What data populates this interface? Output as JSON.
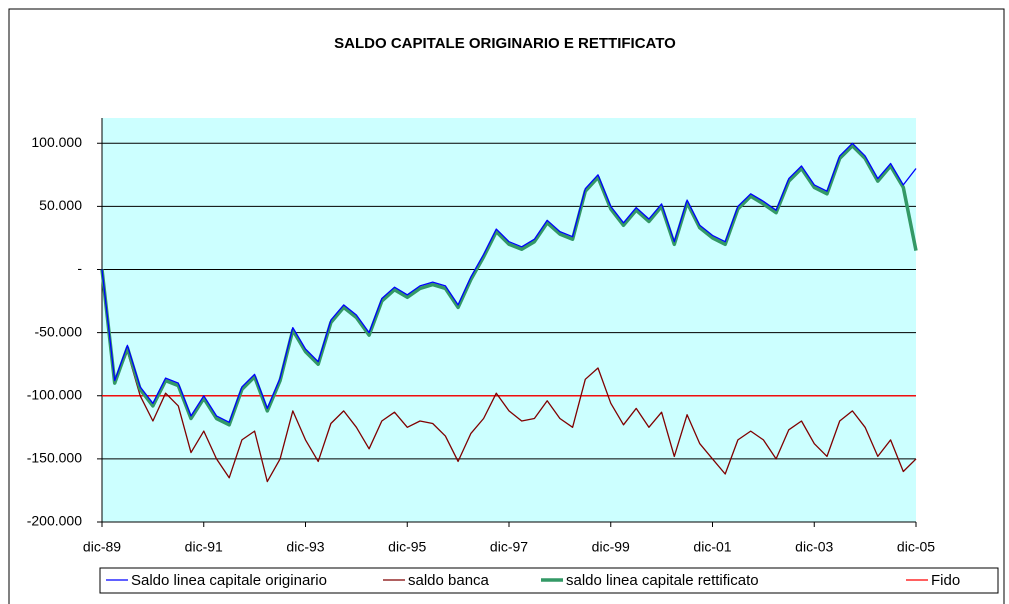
{
  "chart_data": {
    "type": "line",
    "title": "SALDO CAPITALE ORIGINARIO E RETTIFICATO",
    "categories": [
      "dic-89",
      null,
      null,
      null,
      null,
      null,
      null,
      null,
      "dic-91",
      null,
      null,
      null,
      null,
      null,
      null,
      null,
      "dic-93",
      null,
      null,
      null,
      null,
      null,
      null,
      null,
      "dic-95",
      null,
      null,
      null,
      null,
      null,
      null,
      null,
      "dic-97",
      null,
      null,
      null,
      null,
      null,
      null,
      null,
      "dic-99",
      null,
      null,
      null,
      null,
      null,
      null,
      null,
      "dic-01",
      null,
      null,
      null,
      null,
      null,
      null,
      null,
      "dic-03",
      null,
      null,
      null,
      null,
      null,
      null,
      null,
      "dic-05"
    ],
    "series": [
      {
        "name": "Saldo linea capitale originario",
        "color": "#0000ff",
        "values": [
          0,
          -88000,
          -60000,
          -93000,
          -106000,
          -86000,
          -90000,
          -116000,
          -100000,
          -116000,
          -121000,
          -93000,
          -83000,
          -110000,
          -86000,
          -46000,
          -63000,
          -73000,
          -40000,
          -28000,
          -36000,
          -50000,
          -23000,
          -14000,
          -20000,
          -13000,
          -10000,
          -13000,
          -28000,
          -6000,
          12000,
          32000,
          22000,
          18000,
          24000,
          39000,
          30000,
          26000,
          64000,
          75000,
          50000,
          37000,
          49000,
          40000,
          52000,
          22000,
          55000,
          35000,
          27000,
          22000,
          50000,
          60000,
          54000,
          47000,
          72000,
          82000,
          67000,
          62000,
          90000,
          100000,
          90000,
          72000,
          84000,
          67000,
          80000
        ]
      },
      {
        "name": "saldo banca",
        "color": "#800000",
        "values": [
          0,
          -90000,
          -65000,
          -100000,
          -120000,
          -98000,
          -108000,
          -145000,
          -128000,
          -150000,
          -165000,
          -135000,
          -128000,
          -168000,
          -150000,
          -112000,
          -135000,
          -152000,
          -122000,
          -112000,
          -125000,
          -142000,
          -120000,
          -113000,
          -125000,
          -120000,
          -122000,
          -132000,
          -152000,
          -130000,
          -118000,
          -98000,
          -112000,
          -120000,
          -118000,
          -104000,
          -118000,
          -125000,
          -87000,
          -78000,
          -106000,
          -123000,
          -110000,
          -125000,
          -113000,
          -148000,
          -115000,
          -138000,
          -150000,
          -162000,
          -135000,
          -128000,
          -135000,
          -150000,
          -127000,
          -120000,
          -138000,
          -148000,
          -120000,
          -112000,
          -125000,
          -148000,
          -135000,
          -160000,
          -150000
        ]
      },
      {
        "name": "saldo linea capitale rettificato",
        "color": "#339966",
        "values": [
          0,
          -90000,
          -62000,
          -95000,
          -108000,
          -88000,
          -92000,
          -118000,
          -102000,
          -118000,
          -123000,
          -95000,
          -85000,
          -112000,
          -88000,
          -48000,
          -65000,
          -75000,
          -42000,
          -30000,
          -38000,
          -52000,
          -25000,
          -16000,
          -22000,
          -15000,
          -12000,
          -15000,
          -30000,
          -8000,
          10000,
          30000,
          20000,
          16000,
          22000,
          37000,
          28000,
          24000,
          62000,
          73000,
          48000,
          35000,
          47000,
          38000,
          50000,
          20000,
          53000,
          33000,
          25000,
          20000,
          48000,
          58000,
          52000,
          45000,
          70000,
          80000,
          65000,
          60000,
          88000,
          98000,
          88000,
          70000,
          82000,
          65000,
          15000
        ]
      },
      {
        "name": "Fido",
        "color": "#ff0000",
        "values": [
          -100000,
          -100000,
          -100000,
          -100000,
          -100000,
          -100000,
          -100000,
          -100000,
          -100000,
          -100000,
          -100000,
          -100000,
          -100000,
          -100000,
          -100000,
          -100000,
          -100000,
          -100000,
          -100000,
          -100000,
          -100000,
          -100000,
          -100000,
          -100000,
          -100000,
          -100000,
          -100000,
          -100000,
          -100000,
          -100000,
          -100000,
          -100000,
          -100000,
          -100000,
          -100000,
          -100000,
          -100000,
          -100000,
          -100000,
          -100000,
          -100000,
          -100000,
          -100000,
          -100000,
          -100000,
          -100000,
          -100000,
          -100000,
          -100000,
          -100000,
          -100000,
          -100000,
          -100000,
          -100000,
          -100000,
          -100000,
          -100000,
          -100000,
          -100000,
          -100000,
          -100000,
          -100000,
          -100000,
          -100000,
          -100000
        ]
      }
    ],
    "ylim": [
      -200000,
      120000
    ],
    "yticks": [
      {
        "value": -200000,
        "label": "-200.000"
      },
      {
        "value": -150000,
        "label": "-150.000"
      },
      {
        "value": -100000,
        "label": "-100.000"
      },
      {
        "value": -50000,
        "label": "-50.000"
      },
      {
        "value": 0,
        "label": "-"
      },
      {
        "value": 50000,
        "label": "50.000"
      },
      {
        "value": 100000,
        "label": "100.000"
      }
    ],
    "grid": true,
    "legend": "bottom",
    "plot_background": "#ccffff"
  }
}
